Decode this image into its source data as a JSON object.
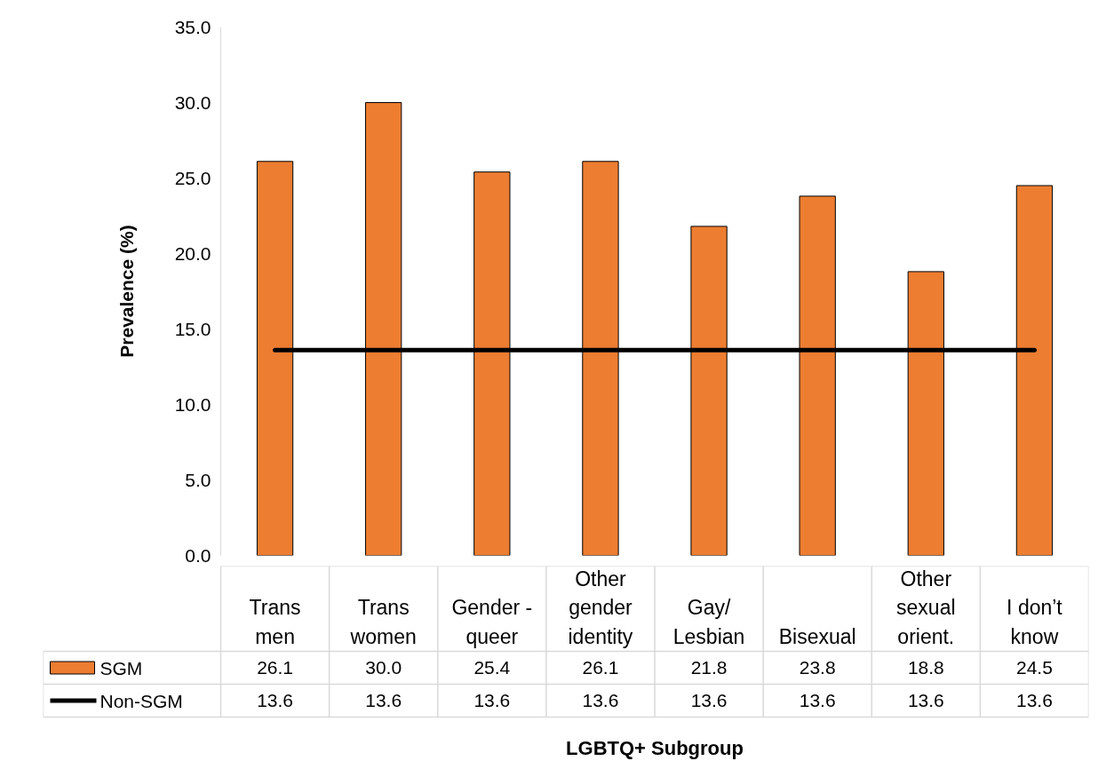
{
  "chart_data": {
    "type": "bar",
    "xlabel": "LGBTQ+ Subgroup",
    "ylabel": "Prevalence (%)",
    "categories": [
      "Trans men",
      "Trans women",
      "Gender - queer",
      "Other gender identity",
      "Gay/ Lesbian",
      "Bisexual",
      "Other sexual orient.",
      "I don’t know"
    ],
    "series": [
      {
        "name": "SGM",
        "color": "#ed7d31",
        "values": [
          26.1,
          30.0,
          25.4,
          26.1,
          21.8,
          23.8,
          18.8,
          24.5
        ],
        "value_labels": [
          "26.1",
          "30.0",
          "25.4",
          "26.1",
          "21.8",
          "23.8",
          "18.8",
          "24.5"
        ]
      },
      {
        "name": "Non-SGM",
        "type": "line",
        "color": "#000000",
        "values": [
          13.6,
          13.6,
          13.6,
          13.6,
          13.6,
          13.6,
          13.6,
          13.6
        ],
        "value_labels": [
          "13.6",
          "13.6",
          "13.6",
          "13.6",
          "13.6",
          "13.6",
          "13.6",
          "13.6"
        ]
      }
    ],
    "ylim": [
      0,
      35
    ],
    "yticks": [
      {
        "value": 0,
        "label": "0.0"
      },
      {
        "value": 5,
        "label": "5.0"
      },
      {
        "value": 10,
        "label": "10.0"
      },
      {
        "value": 15,
        "label": "15.0"
      },
      {
        "value": 20,
        "label": "20.0"
      },
      {
        "value": 25,
        "label": "25.0"
      },
      {
        "value": 30,
        "label": "30.0"
      },
      {
        "value": 35,
        "label": "35.0"
      }
    ],
    "grid": false,
    "legend": "bottom left"
  }
}
